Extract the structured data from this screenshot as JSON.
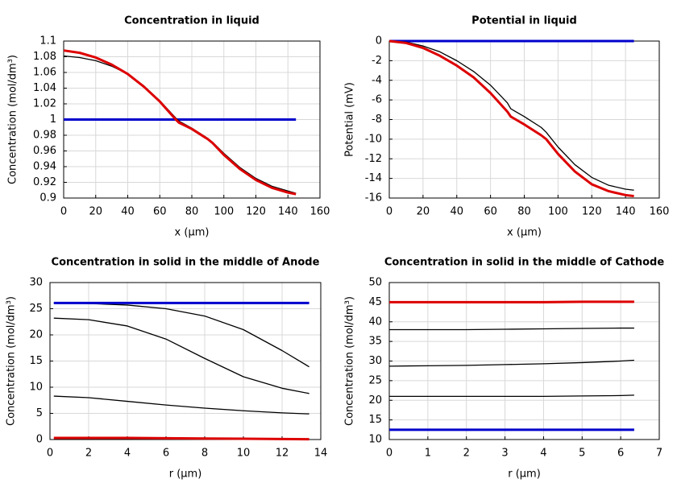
{
  "chart_data": [
    {
      "type": "line",
      "title": "Concentration in liquid",
      "xlabel": "x (μm)",
      "ylabel": "Concentration (mol/dm³)",
      "x": [
        0,
        10,
        20,
        30,
        40,
        50,
        60,
        70,
        72,
        80,
        90,
        93,
        100,
        110,
        120,
        130,
        140,
        145
      ],
      "series": [
        {
          "color": "#0000cc",
          "values": [
            1,
            1,
            1,
            1,
            1,
            1,
            1,
            1,
            1,
            1,
            1,
            1,
            1,
            1,
            1,
            1,
            1,
            1
          ]
        },
        {
          "color": "#000000",
          "values": [
            1.081,
            1.079,
            1.075,
            1.068,
            1.058,
            1.043,
            1.024,
            1.002,
            0.998,
            0.989,
            0.976,
            0.971,
            0.957,
            0.939,
            0.925,
            0.915,
            0.909,
            0.906
          ]
        },
        {
          "color": "#dd0000",
          "values": [
            1.088,
            1.085,
            1.079,
            1.07,
            1.058,
            1.042,
            1.023,
            1.0,
            0.996,
            0.988,
            0.975,
            0.97,
            0.955,
            0.937,
            0.923,
            0.913,
            0.907,
            0.905
          ]
        }
      ],
      "xlim": [
        0,
        160
      ],
      "xticks": [
        0,
        20,
        40,
        60,
        80,
        100,
        120,
        140,
        160
      ],
      "ylim": [
        0.9,
        1.1
      ],
      "yticks": [
        0.9,
        0.92,
        0.94,
        0.96,
        0.98,
        1,
        1.02,
        1.04,
        1.06,
        1.08,
        1.1
      ],
      "grid": true
    },
    {
      "type": "line",
      "title": "Potential in liquid",
      "xlabel": "x (μm)",
      "ylabel": "Potential (mV)",
      "x": [
        0,
        10,
        20,
        30,
        40,
        50,
        60,
        70,
        72,
        80,
        90,
        93,
        100,
        110,
        120,
        130,
        140,
        145
      ],
      "series": [
        {
          "color": "#0000cc",
          "values": [
            0,
            0,
            0,
            0,
            0,
            0,
            0,
            0,
            0,
            0,
            0,
            0,
            0,
            0,
            0,
            0,
            0,
            0
          ]
        },
        {
          "color": "#000000",
          "values": [
            0,
            -0.1,
            -0.5,
            -1.1,
            -2.0,
            -3.1,
            -4.5,
            -6.3,
            -6.9,
            -7.7,
            -8.8,
            -9.3,
            -10.8,
            -12.6,
            -13.9,
            -14.7,
            -15.1,
            -15.2
          ]
        },
        {
          "color": "#dd0000",
          "values": [
            0,
            -0.2,
            -0.7,
            -1.5,
            -2.5,
            -3.7,
            -5.3,
            -7.2,
            -7.7,
            -8.5,
            -9.6,
            -10.0,
            -11.5,
            -13.3,
            -14.6,
            -15.3,
            -15.7,
            -15.8
          ]
        }
      ],
      "xlim": [
        0,
        160
      ],
      "xticks": [
        0,
        20,
        40,
        60,
        80,
        100,
        120,
        140,
        160
      ],
      "ylim": [
        -16,
        0
      ],
      "yticks": [
        -16,
        -14,
        -12,
        -10,
        -8,
        -6,
        -4,
        -2,
        0
      ],
      "grid": true
    },
    {
      "type": "line",
      "title": "Concentration in solid in the middle of Anode",
      "xlabel": "r (μm)",
      "ylabel": "Concentration (mol/dm³)",
      "x": [
        0.2,
        2,
        4,
        6,
        8,
        10,
        12,
        13.4
      ],
      "series": [
        {
          "color": "#000000",
          "values": [
            26.1,
            26.0,
            25.7,
            25.0,
            23.6,
            21.0,
            17.0,
            13.9
          ]
        },
        {
          "color": "#000000",
          "values": [
            23.2,
            22.9,
            21.7,
            19.2,
            15.5,
            12.0,
            9.8,
            8.8
          ]
        },
        {
          "color": "#000000",
          "values": [
            8.3,
            8.0,
            7.3,
            6.6,
            6.0,
            5.5,
            5.1,
            4.9
          ]
        },
        {
          "color": "#0000cc",
          "values": [
            26.1,
            26.1,
            26.1,
            26.1,
            26.1,
            26.1,
            26.1,
            26.1
          ]
        },
        {
          "color": "#dd0000",
          "values": [
            0.3,
            0.3,
            0.3,
            0.25,
            0.2,
            0.15,
            0.1,
            0.05
          ]
        }
      ],
      "xlim": [
        0,
        14
      ],
      "xticks": [
        0,
        2,
        4,
        6,
        8,
        10,
        12,
        14
      ],
      "ylim": [
        0,
        30
      ],
      "yticks": [
        0,
        5,
        10,
        15,
        20,
        25,
        30
      ],
      "grid": true
    },
    {
      "type": "line",
      "title": "Concentration in solid in the middle of Cathode",
      "xlabel": "r (μm)",
      "ylabel": "Concentration (mol/dm³)",
      "x": [
        0,
        1,
        2,
        3,
        4,
        5,
        6,
        6.35
      ],
      "series": [
        {
          "color": "#000000",
          "values": [
            38.0,
            38.0,
            38.0,
            38.1,
            38.2,
            38.3,
            38.4,
            38.4
          ]
        },
        {
          "color": "#000000",
          "values": [
            28.7,
            28.8,
            28.9,
            29.1,
            29.3,
            29.6,
            30.0,
            30.2
          ]
        },
        {
          "color": "#000000",
          "values": [
            21.0,
            21.0,
            21.0,
            21.0,
            21.0,
            21.1,
            21.2,
            21.3
          ]
        },
        {
          "color": "#dd0000",
          "values": [
            45.0,
            45.0,
            45.0,
            45.0,
            45.0,
            45.1,
            45.1,
            45.1
          ]
        },
        {
          "color": "#0000cc",
          "values": [
            12.5,
            12.5,
            12.5,
            12.5,
            12.5,
            12.5,
            12.5,
            12.5
          ]
        }
      ],
      "xlim": [
        0,
        7
      ],
      "xticks": [
        0,
        1,
        2,
        3,
        4,
        5,
        6,
        7
      ],
      "ylim": [
        10,
        50
      ],
      "yticks": [
        10,
        15,
        20,
        25,
        30,
        35,
        40,
        45,
        50
      ],
      "grid": true
    }
  ]
}
